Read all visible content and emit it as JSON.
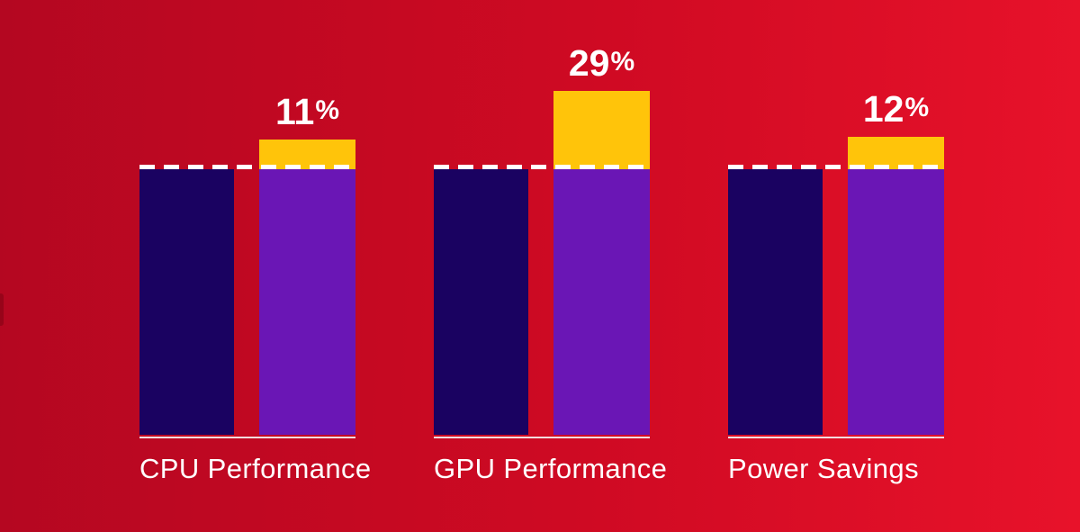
{
  "colors": {
    "background_left": "#b40721",
    "background_mid": "#cf0a23",
    "background_right": "#e8122a",
    "baseline_bar": "#1a0261",
    "comparison_bar": "#6a16b5",
    "gain_cap": "#ffc40a",
    "dashed_line": "#ffffff",
    "axis_line": "#f3e7e9",
    "text": "#ffffff"
  },
  "chart_data": {
    "type": "bar",
    "title": "",
    "categories": [
      "CPU Performance",
      "GPU Performance",
      "Power Savings"
    ],
    "series": [
      {
        "name": "baseline (dark indigo bar)",
        "values": [
          100,
          100,
          100
        ]
      },
      {
        "name": "comparison (purple bar with gold gain cap)",
        "values": [
          111,
          129,
          112
        ]
      }
    ],
    "gains_pct": [
      11,
      29,
      12
    ],
    "gain_labels": [
      {
        "value": "11",
        "suffix": "%"
      },
      {
        "value": "29",
        "suffix": "%"
      },
      {
        "value": "12",
        "suffix": "%"
      }
    ],
    "baseline_reference_pct": 100,
    "legend_position": "none",
    "axes": {
      "y_axis_visible": false,
      "x_axis_visible": false,
      "baseline_marker": "white dashed line at 100% level",
      "group_underline": "white line under each bar pair"
    }
  }
}
